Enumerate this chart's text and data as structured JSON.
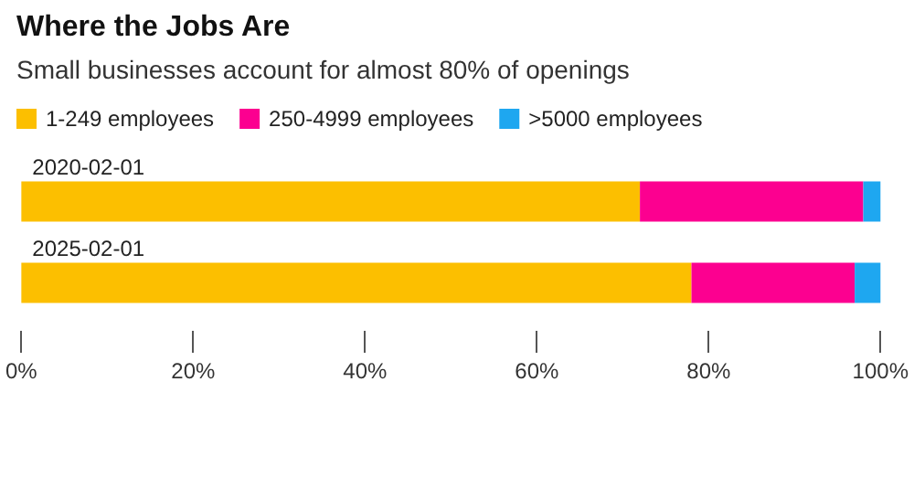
{
  "chart_data": {
    "type": "bar",
    "orientation": "horizontal",
    "stacked": true,
    "title": "Where the Jobs Are",
    "subtitle": "Small businesses account for almost 80% of openings",
    "categories": [
      "2020-02-01",
      "2025-02-01"
    ],
    "series": [
      {
        "name": "1-249 employees",
        "color": "#fcbf00",
        "values": [
          72,
          78
        ]
      },
      {
        "name": "250-4999 employees",
        "color": "#fc0090",
        "values": [
          26,
          19
        ]
      },
      {
        "name": ">5000 employees",
        "color": "#1ea7f0",
        "values": [
          2,
          3
        ]
      }
    ],
    "xlim": [
      0,
      100
    ],
    "xticks": [
      {
        "value": 0,
        "label": "0%"
      },
      {
        "value": 20,
        "label": "20%"
      },
      {
        "value": 40,
        "label": "40%"
      },
      {
        "value": 60,
        "label": "60%"
      },
      {
        "value": 80,
        "label": "80%"
      },
      {
        "value": 100,
        "label": "100%"
      }
    ],
    "grid": false,
    "legend": "top left"
  }
}
